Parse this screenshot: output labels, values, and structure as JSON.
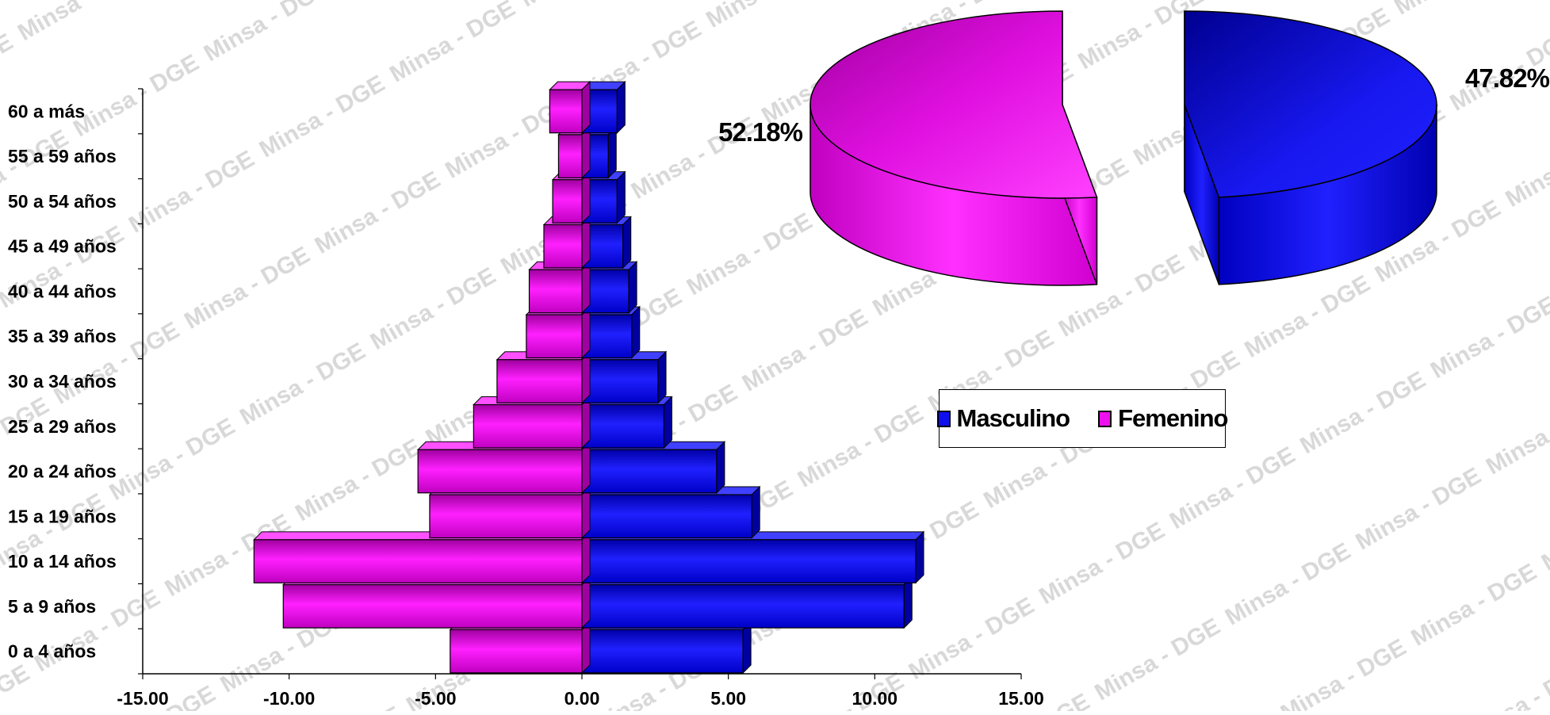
{
  "watermark": "Minsa - DGE",
  "colors": {
    "masculino": "#1010ee",
    "femenino": "#ee10ee",
    "masculino_dark": "#00008a",
    "femenino_dark": "#8a008a"
  },
  "chart_data": [
    {
      "type": "bar",
      "orientation": "horizontal",
      "categories": [
        "0 a 4 años",
        "5 a 9 años",
        "10 a 14 años",
        "15 a 19 años",
        "20 a 24 años",
        "25 a 29 años",
        "30 a 34 años",
        "35 a 39 años",
        "40 a 44 años",
        "45 a 49 años",
        "50 a 54 años",
        "55 a 59 años",
        "60 a más"
      ],
      "series": [
        {
          "name": "Masculino",
          "values": [
            5.5,
            11.0,
            11.4,
            5.8,
            4.6,
            2.8,
            2.6,
            1.7,
            1.6,
            1.4,
            1.2,
            0.9,
            1.2
          ]
        },
        {
          "name": "Femenino",
          "values": [
            -4.5,
            -10.2,
            -11.2,
            -5.2,
            -5.6,
            -3.7,
            -2.9,
            -1.9,
            -1.8,
            -1.3,
            -1.0,
            -0.8,
            -1.1
          ]
        }
      ],
      "xlim": [
        -15,
        15
      ],
      "xticks": [
        "-15.00",
        "-10.00",
        "-5.00",
        "0.00",
        "5.00",
        "10.00",
        "15.00"
      ],
      "grid": false
    },
    {
      "type": "pie",
      "style": "3d-exploded",
      "slices": [
        {
          "name": "Femenino",
          "value": 52.18,
          "label": "52.18%"
        },
        {
          "name": "Masculino",
          "value": 47.82,
          "label": "47.82%"
        }
      ],
      "legend": {
        "placement": "center-right",
        "items": [
          "Masculino",
          "Femenino"
        ]
      }
    }
  ]
}
